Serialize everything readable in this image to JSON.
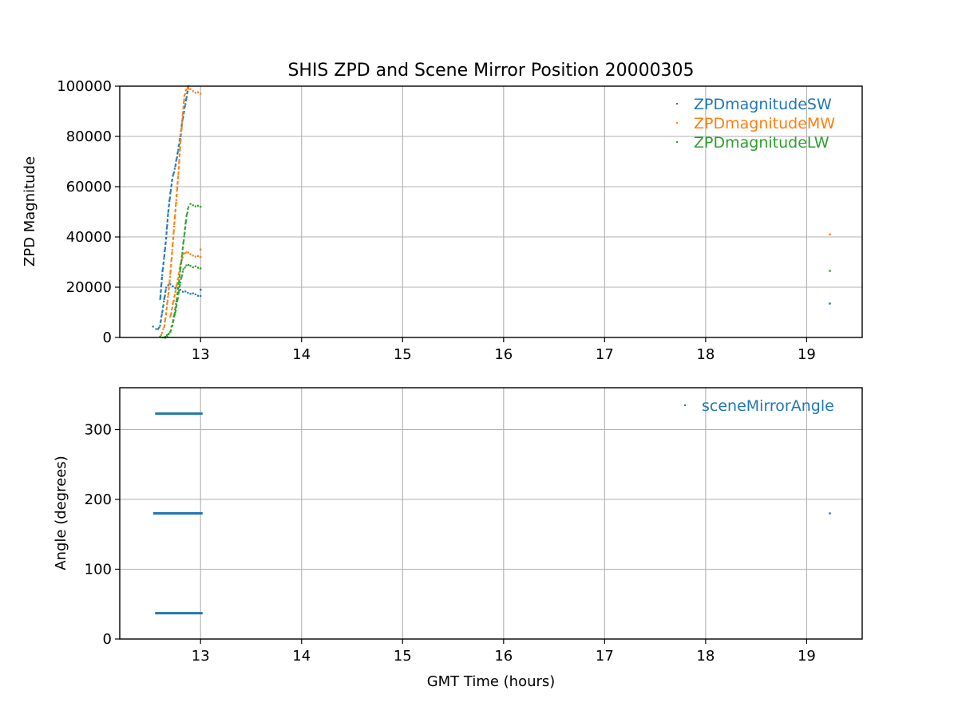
{
  "chart_data": [
    {
      "type": "scatter",
      "title": "SHIS ZPD and Scene Mirror Position 20000305",
      "xlabel": "",
      "ylabel": "ZPD Magnitude",
      "xlim": [
        12.2,
        19.55
      ],
      "ylim": [
        0,
        100000
      ],
      "xticks": [
        13,
        14,
        15,
        16,
        17,
        18,
        19
      ],
      "yticks": [
        0,
        20000,
        40000,
        60000,
        80000,
        100000
      ],
      "grid": true,
      "legend_position": "top-right",
      "series": [
        {
          "name": "ZPDmagnitudeSW",
          "color": "#1f77b4",
          "segments": [
            {
              "x": [
                12.53,
                12.56,
                12.58,
                12.6,
                12.62,
                12.64,
                12.66,
                12.7,
                12.75,
                12.8,
                12.85,
                12.9,
                12.95,
                13.0
              ],
              "y": [
                4000,
                3500,
                3200,
                5000,
                10000,
                15000,
                20000,
                21000,
                20000,
                19000,
                18000,
                17500,
                17000,
                16500
              ]
            },
            {
              "x": [
                12.6,
                12.62,
                12.64,
                12.66,
                12.68,
                12.7,
                12.72,
                12.75,
                12.78,
                12.8,
                12.82,
                12.85,
                12.88
              ],
              "y": [
                15000,
                25000,
                32000,
                40000,
                50000,
                57000,
                63000,
                68000,
                75000,
                80000,
                86000,
                93000,
                100000
              ]
            },
            {
              "x": [
                13.0
              ],
              "y": [
                19000
              ]
            },
            {
              "x": [
                19.23
              ],
              "y": [
                13500
              ]
            }
          ]
        },
        {
          "name": "ZPDmagnitudeMW",
          "color": "#ff7f0e",
          "segments": [
            {
              "x": [
                12.6,
                12.62,
                12.64,
                12.66,
                12.68,
                12.7,
                12.72,
                12.74,
                12.76,
                12.78,
                12.8,
                12.82,
                12.84,
                12.86,
                12.88,
                12.9,
                12.95,
                13.0
              ],
              "y": [
                0,
                2000,
                4000,
                10000,
                17000,
                25000,
                35000,
                45000,
                55000,
                65000,
                77000,
                87000,
                96000,
                99000,
                99000,
                98500,
                97500,
                97000
              ]
            },
            {
              "x": [
                12.7,
                12.72,
                12.75,
                12.78,
                12.8,
                12.83,
                12.86,
                12.9,
                12.95,
                13.0
              ],
              "y": [
                8000,
                12000,
                18000,
                24000,
                29000,
                33000,
                34000,
                33000,
                32500,
                32000
              ]
            },
            {
              "x": [
                13.0
              ],
              "y": [
                35000
              ]
            },
            {
              "x": [
                19.23
              ],
              "y": [
                41000
              ]
            }
          ]
        },
        {
          "name": "ZPDmagnitudeLW",
          "color": "#2ca02c",
          "segments": [
            {
              "x": [
                12.65,
                12.67,
                12.7,
                12.72,
                12.74,
                12.76,
                12.78,
                12.8,
                12.82,
                12.84,
                12.86,
                12.88,
                12.9,
                12.95,
                13.0
              ],
              "y": [
                0,
                500,
                2000,
                5000,
                9000,
                14000,
                20000,
                27000,
                34000,
                41000,
                48000,
                52000,
                53000,
                52500,
                52000
              ]
            },
            {
              "x": [
                12.6,
                12.65,
                12.7,
                12.72,
                12.75,
                12.78,
                12.8,
                12.83,
                12.86,
                12.9,
                12.95,
                13.0
              ],
              "y": [
                0,
                0,
                2000,
                5000,
                10000,
                17000,
                22000,
                27000,
                29000,
                28500,
                28000,
                27500
              ]
            },
            {
              "x": [
                19.23
              ],
              "y": [
                26500
              ]
            }
          ]
        }
      ]
    },
    {
      "type": "scatter",
      "title": "",
      "xlabel": "GMT Time (hours)",
      "ylabel": "Angle (degrees)",
      "xlim": [
        12.2,
        19.55
      ],
      "ylim": [
        0,
        360
      ],
      "xticks": [
        13,
        14,
        15,
        16,
        17,
        18,
        19
      ],
      "yticks": [
        0,
        100,
        200,
        300
      ],
      "grid": true,
      "legend_position": "top-right",
      "series": [
        {
          "name": "sceneMirrorAngle",
          "color": "#1f77b4",
          "segments": [
            {
              "x": [
                12.55,
                13.02
              ],
              "y": [
                323,
                323
              ],
              "style": "band"
            },
            {
              "x": [
                12.53,
                13.02
              ],
              "y": [
                180,
                180
              ],
              "style": "band"
            },
            {
              "x": [
                12.55,
                13.02
              ],
              "y": [
                37,
                37
              ],
              "style": "band"
            },
            {
              "x": [
                19.23
              ],
              "y": [
                180
              ]
            }
          ]
        }
      ]
    }
  ]
}
